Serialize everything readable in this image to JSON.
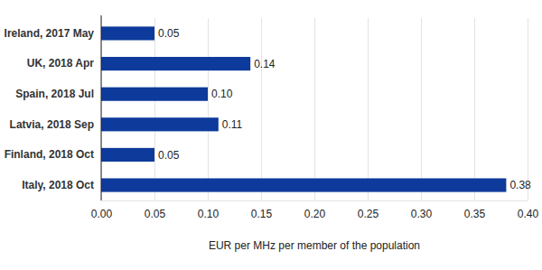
{
  "chart_data": {
    "type": "bar",
    "orientation": "horizontal",
    "categories": [
      "Ireland, 2017 May",
      "UK, 2018 Apr",
      "Spain, 2018 Jul",
      "Latvia, 2018 Sep",
      "Finland, 2018 Oct",
      "Italy, 2018 Oct"
    ],
    "values": [
      0.05,
      0.14,
      0.1,
      0.11,
      0.05,
      0.38
    ],
    "value_labels": [
      "0.05",
      "0.14",
      "0.10",
      "0.11",
      "0.05",
      "0.38"
    ],
    "data_labels": true,
    "color": "#0d3a9b",
    "xlabel": "EUR per MHz per member of the population",
    "xlim": [
      0,
      0.4
    ],
    "xticks": [
      {
        "value": 0,
        "label": "0.00"
      },
      0.05,
      {
        "value": 0.1,
        "label": "0.10"
      },
      0.15,
      {
        "value": 0.2,
        "label": "0.20"
      },
      0.25,
      {
        "value": 0.3,
        "label": "0.30"
      },
      0.35,
      {
        "value": 0.4,
        "label": "0.40"
      }
    ],
    "grid": true
  }
}
